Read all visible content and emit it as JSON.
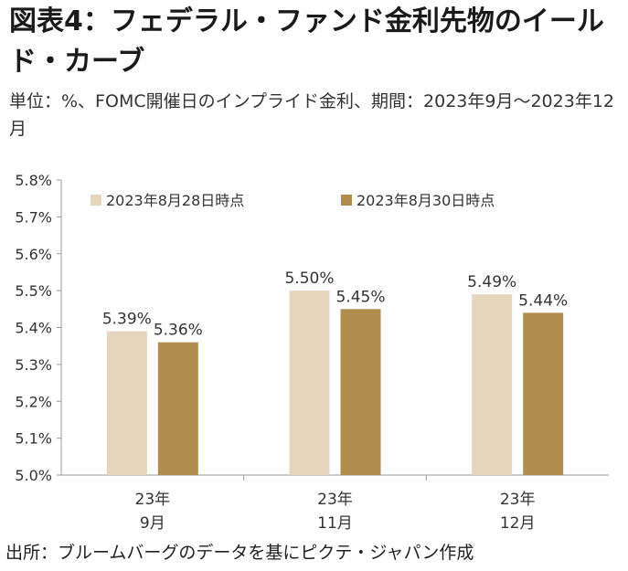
{
  "title": "図表4：フェデラル・ファンド金利先物のイールド・カーブ",
  "subtitle": "単位：%、FOMC開催日のインプライド金利、期間：2023年9月～2023年12月",
  "source": "出所：ブルームバーグのデータを基にピクテ・ジャパン作成",
  "chart_data": {
    "type": "bar",
    "categories": [
      {
        "line1": "23年",
        "line2": "9月"
      },
      {
        "line1": "23年",
        "line2": "11月"
      },
      {
        "line1": "23年",
        "line2": "12月"
      }
    ],
    "series": [
      {
        "name": "2023年8月28日時点",
        "color": "#e3d6bd",
        "values": [
          5.39,
          5.5,
          5.49
        ],
        "labels": [
          "5.39%",
          "5.50%",
          "5.49%"
        ]
      },
      {
        "name": "2023年8月30日時点",
        "color": "#b08f4e",
        "values": [
          5.36,
          5.45,
          5.44
        ],
        "labels": [
          "5.36%",
          "5.45%",
          "5.44%"
        ]
      }
    ],
    "ylim": [
      5.0,
      5.8
    ],
    "yticks": [
      5.0,
      5.1,
      5.2,
      5.3,
      5.4,
      5.5,
      5.6,
      5.7,
      5.8
    ],
    "ytick_labels": [
      "5.0%",
      "5.1%",
      "5.2%",
      "5.3%",
      "5.4%",
      "5.5%",
      "5.6%",
      "5.7%",
      "5.8%"
    ],
    "legend_position": "top",
    "grid": false
  }
}
